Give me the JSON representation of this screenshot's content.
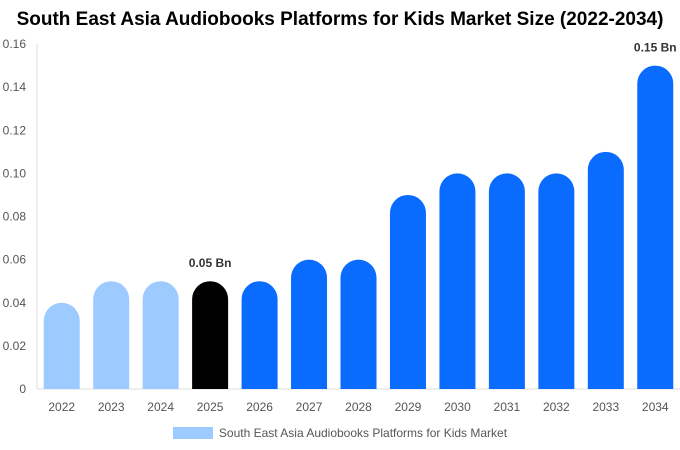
{
  "chart_data": {
    "type": "bar",
    "title": "South East Asia Audiobooks Platforms for Kids Market Size (2022-2034)",
    "categories": [
      "2022",
      "2023",
      "2024",
      "2025",
      "2026",
      "2027",
      "2028",
      "2029",
      "2030",
      "2031",
      "2032",
      "2033",
      "2034"
    ],
    "series": [
      {
        "name": "South East Asia Audiobooks Platforms for Kids Market",
        "values": [
          0.04,
          0.05,
          0.05,
          0.05,
          0.05,
          0.06,
          0.06,
          0.09,
          0.1,
          0.1,
          0.1,
          0.11,
          0.15
        ]
      }
    ],
    "ylim": [
      0,
      0.16
    ],
    "yticks": [
      "0",
      "0.02",
      "0.04",
      "0.06",
      "0.08",
      "0.10",
      "0.12",
      "0.14",
      "0.16"
    ],
    "annotations": [
      {
        "category": "2025",
        "text": "0.05 Bn"
      },
      {
        "category": "2034",
        "text": "0.15 Bn"
      }
    ],
    "highlight_category": "2025",
    "colors": {
      "historical": "#9ecbff",
      "highlight": "#000000",
      "forecast": "#0a6cff"
    },
    "historical_categories": [
      "2022",
      "2023",
      "2024"
    ],
    "legend_position": "bottom",
    "grid": false
  }
}
